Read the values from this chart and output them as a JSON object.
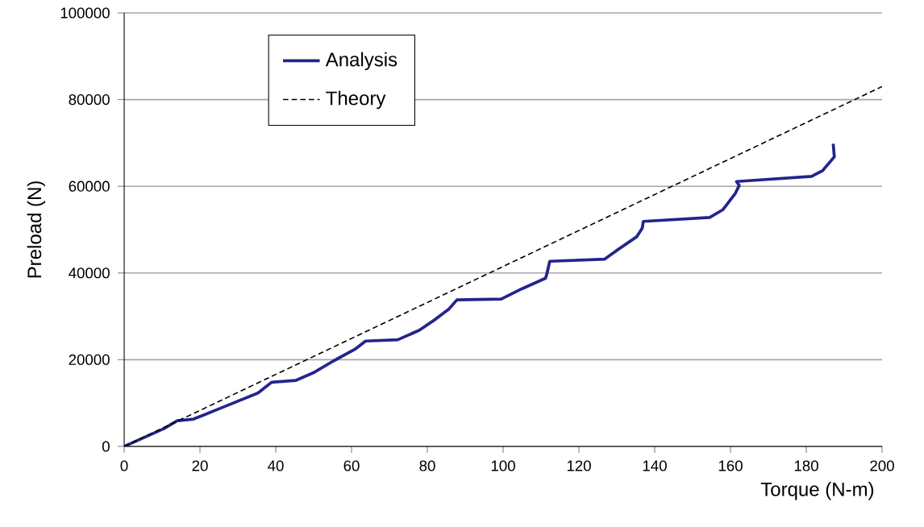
{
  "chart_data": {
    "type": "line",
    "xlabel": "Torque (N-m)",
    "ylabel": "Preload (N)",
    "xlim": [
      0,
      200
    ],
    "xticks": [
      0,
      20,
      40,
      60,
      80,
      100,
      120,
      140,
      160,
      180,
      200
    ],
    "ylim": [
      0,
      100000
    ],
    "yticks": [
      0,
      20000,
      40000,
      60000,
      80000,
      100000
    ],
    "grid": "y",
    "legend": "top left",
    "series": [
      {
        "name": "Analysis",
        "color": "#24248c",
        "line_style": "solid",
        "x": [
          0,
          10.5,
          14,
          18.3,
          25.4,
          35.3,
          38.9,
          45.2,
          50.2,
          55.2,
          60.9,
          63.7,
          72.2,
          77.9,
          82.1,
          85.7,
          87.8,
          99.5,
          104.8,
          111.2,
          111.6,
          112.3,
          126.8,
          130.3,
          135.3,
          136.7,
          137,
          154.5,
          158,
          161.3,
          162.3,
          161.6,
          181.4,
          184.3,
          187.4,
          187.1
        ],
        "values": [
          0,
          4100,
          5900,
          6300,
          8800,
          12300,
          14800,
          15200,
          17100,
          19700,
          22400,
          24300,
          24600,
          26800,
          29300,
          31700,
          33800,
          34000,
          36300,
          38800,
          40000,
          42700,
          43200,
          45400,
          48400,
          50300,
          51900,
          52800,
          54600,
          58400,
          60200,
          61100,
          62300,
          63600,
          66800,
          69800
        ]
      },
      {
        "name": "Theory",
        "color": "#000000",
        "line_style": "dashed",
        "x": [
          0,
          200
        ],
        "values": [
          0,
          83000
        ]
      }
    ]
  }
}
